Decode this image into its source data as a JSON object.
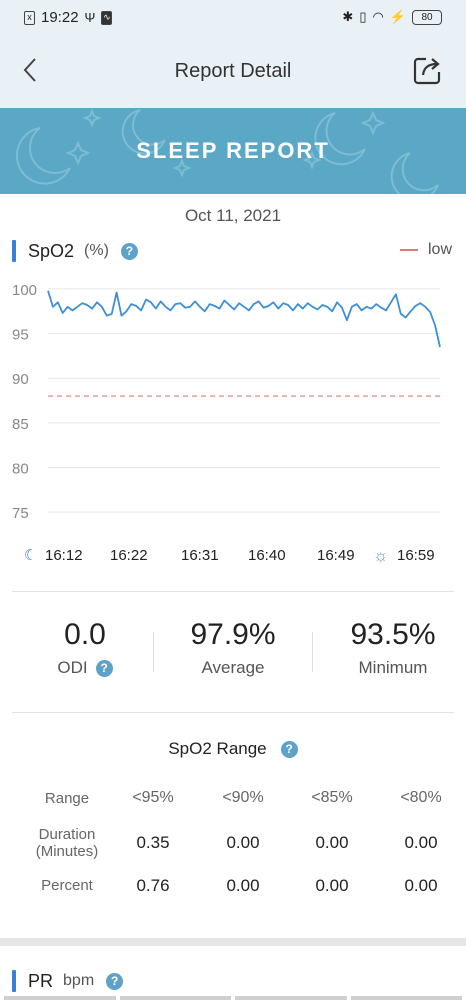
{
  "status_bar": {
    "time": "19:22",
    "battery": "80"
  },
  "header": {
    "title": "Report Detail"
  },
  "banner": {
    "title": "SLEEP REPORT"
  },
  "report_date": "Oct 11, 2021",
  "spo2_section": {
    "label": "SpO2",
    "unit": "(%)",
    "legend_low": "low"
  },
  "chart_data": {
    "type": "line",
    "title": "",
    "xlabel": "",
    "ylabel": "",
    "ylim": [
      73,
      101
    ],
    "yticks": [
      "100",
      "95",
      "90",
      "85",
      "80",
      "75"
    ],
    "x_ticks": [
      "16:12",
      "16:22",
      "16:31",
      "16:40",
      "16:49",
      "16:59"
    ],
    "low_threshold": 88,
    "series": [
      {
        "name": "",
        "values": [
          99.8,
          98.0,
          98.5,
          97.3,
          98.0,
          97.6,
          98.0,
          98.4,
          98.2,
          97.8,
          98.5,
          98.0,
          97.0,
          97.2,
          99.6,
          97.0,
          97.5,
          98.3,
          98.1,
          97.6,
          98.8,
          98.5,
          97.8,
          98.6,
          98.0,
          97.6,
          98.3,
          98.4,
          97.9,
          98.0,
          98.6,
          98.0,
          97.5,
          98.3,
          98.1,
          97.8,
          98.7,
          98.2,
          97.7,
          98.4,
          98.0,
          97.6,
          98.3,
          98.6,
          97.9,
          98.1,
          98.5,
          97.8,
          98.4,
          98.2,
          97.6,
          98.3,
          97.8,
          98.4,
          98.0,
          97.7,
          98.2,
          98.0,
          97.5,
          98.5,
          97.9,
          96.5,
          98.0,
          98.3,
          97.6,
          98.0,
          97.8,
          98.3,
          97.9,
          97.6,
          98.5,
          99.4,
          97.2,
          96.8,
          97.5,
          98.1,
          98.4,
          98.0,
          97.4,
          95.9,
          93.5
        ]
      }
    ]
  },
  "stats": {
    "odi": {
      "value": "0.0",
      "label": "ODI"
    },
    "average": {
      "value": "97.9%",
      "label": "Average"
    },
    "minimum": {
      "value": "93.5%",
      "label": "Minimum"
    }
  },
  "spo2_range": {
    "title": "SpO2 Range",
    "range_label": "Range",
    "headers": [
      "<95%",
      "<90%",
      "<85%",
      "<80%"
    ],
    "rows": [
      {
        "label_line1": "Duration",
        "label_line2": "(Minutes)",
        "values": [
          "0.35",
          "0.00",
          "0.00",
          "0.00"
        ]
      },
      {
        "label_line1": "Percent",
        "label_line2": "",
        "values": [
          "0.76",
          "0.00",
          "0.00",
          "0.00"
        ]
      }
    ]
  },
  "pr_section": {
    "label": "PR",
    "unit": "bpm"
  },
  "colors": {
    "accent": "#3a7fd5",
    "banner": "#5aa8c6",
    "line": "#3d8fd6",
    "low": "#e07a7a"
  }
}
